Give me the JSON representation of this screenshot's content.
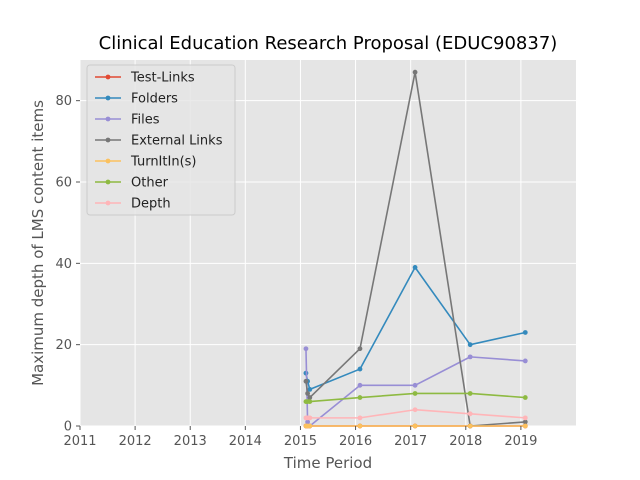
{
  "chart_data": {
    "type": "line",
    "title": "Clinical Education Research Proposal (EDUC90837)",
    "xlabel": "Time Period",
    "ylabel": "Maximum depth of LMS content items",
    "xlim": [
      2011,
      2020
    ],
    "ylim": [
      0,
      90
    ],
    "xticks": [
      "2011",
      "2012",
      "2013",
      "2014",
      "2015",
      "2016",
      "2017",
      "2018",
      "2019"
    ],
    "yticks": [
      "0",
      "20",
      "40",
      "60",
      "80"
    ],
    "grid": true,
    "legend_position": "upper-left",
    "series": [
      {
        "name": "Test-Links",
        "color": "#E24A33",
        "x": [
          2015.1,
          2015.13,
          2015.17,
          2016.08,
          2017.08,
          2018.08,
          2019.08
        ],
        "y": [
          0,
          0,
          0,
          0,
          0,
          0,
          0
        ]
      },
      {
        "name": "Folders",
        "color": "#348ABD",
        "x": [
          2015.1,
          2015.13,
          2015.17,
          2016.08,
          2017.08,
          2018.08,
          2019.08
        ],
        "y": [
          13,
          11,
          9,
          14,
          39,
          20,
          23
        ]
      },
      {
        "name": "Files",
        "color": "#988ED5",
        "x": [
          2015.1,
          2015.13,
          2015.17,
          2016.08,
          2017.08,
          2018.08,
          2019.08
        ],
        "y": [
          19,
          1,
          0,
          10,
          10,
          17,
          16
        ]
      },
      {
        "name": "External Links",
        "color": "#777777",
        "x": [
          2015.1,
          2015.13,
          2015.17,
          2016.08,
          2017.08,
          2018.08,
          2019.08
        ],
        "y": [
          11,
          8,
          7,
          19,
          87,
          0,
          1
        ]
      },
      {
        "name": "TurnItIn(s)",
        "color": "#FBC15E",
        "x": [
          2015.1,
          2015.13,
          2015.17,
          2016.08,
          2017.08,
          2018.08,
          2019.08
        ],
        "y": [
          0,
          0,
          0,
          0,
          0,
          0,
          0
        ]
      },
      {
        "name": "Other",
        "color": "#8EBA42",
        "x": [
          2015.1,
          2015.13,
          2015.17,
          2016.08,
          2017.08,
          2018.08,
          2019.08
        ],
        "y": [
          6,
          6,
          6,
          7,
          8,
          8,
          7
        ]
      },
      {
        "name": "Depth",
        "color": "#FFB5B8",
        "x": [
          2015.1,
          2015.13,
          2015.17,
          2016.08,
          2017.08,
          2018.08,
          2019.08
        ],
        "y": [
          2,
          2,
          2,
          2,
          4,
          3,
          2
        ]
      }
    ]
  }
}
